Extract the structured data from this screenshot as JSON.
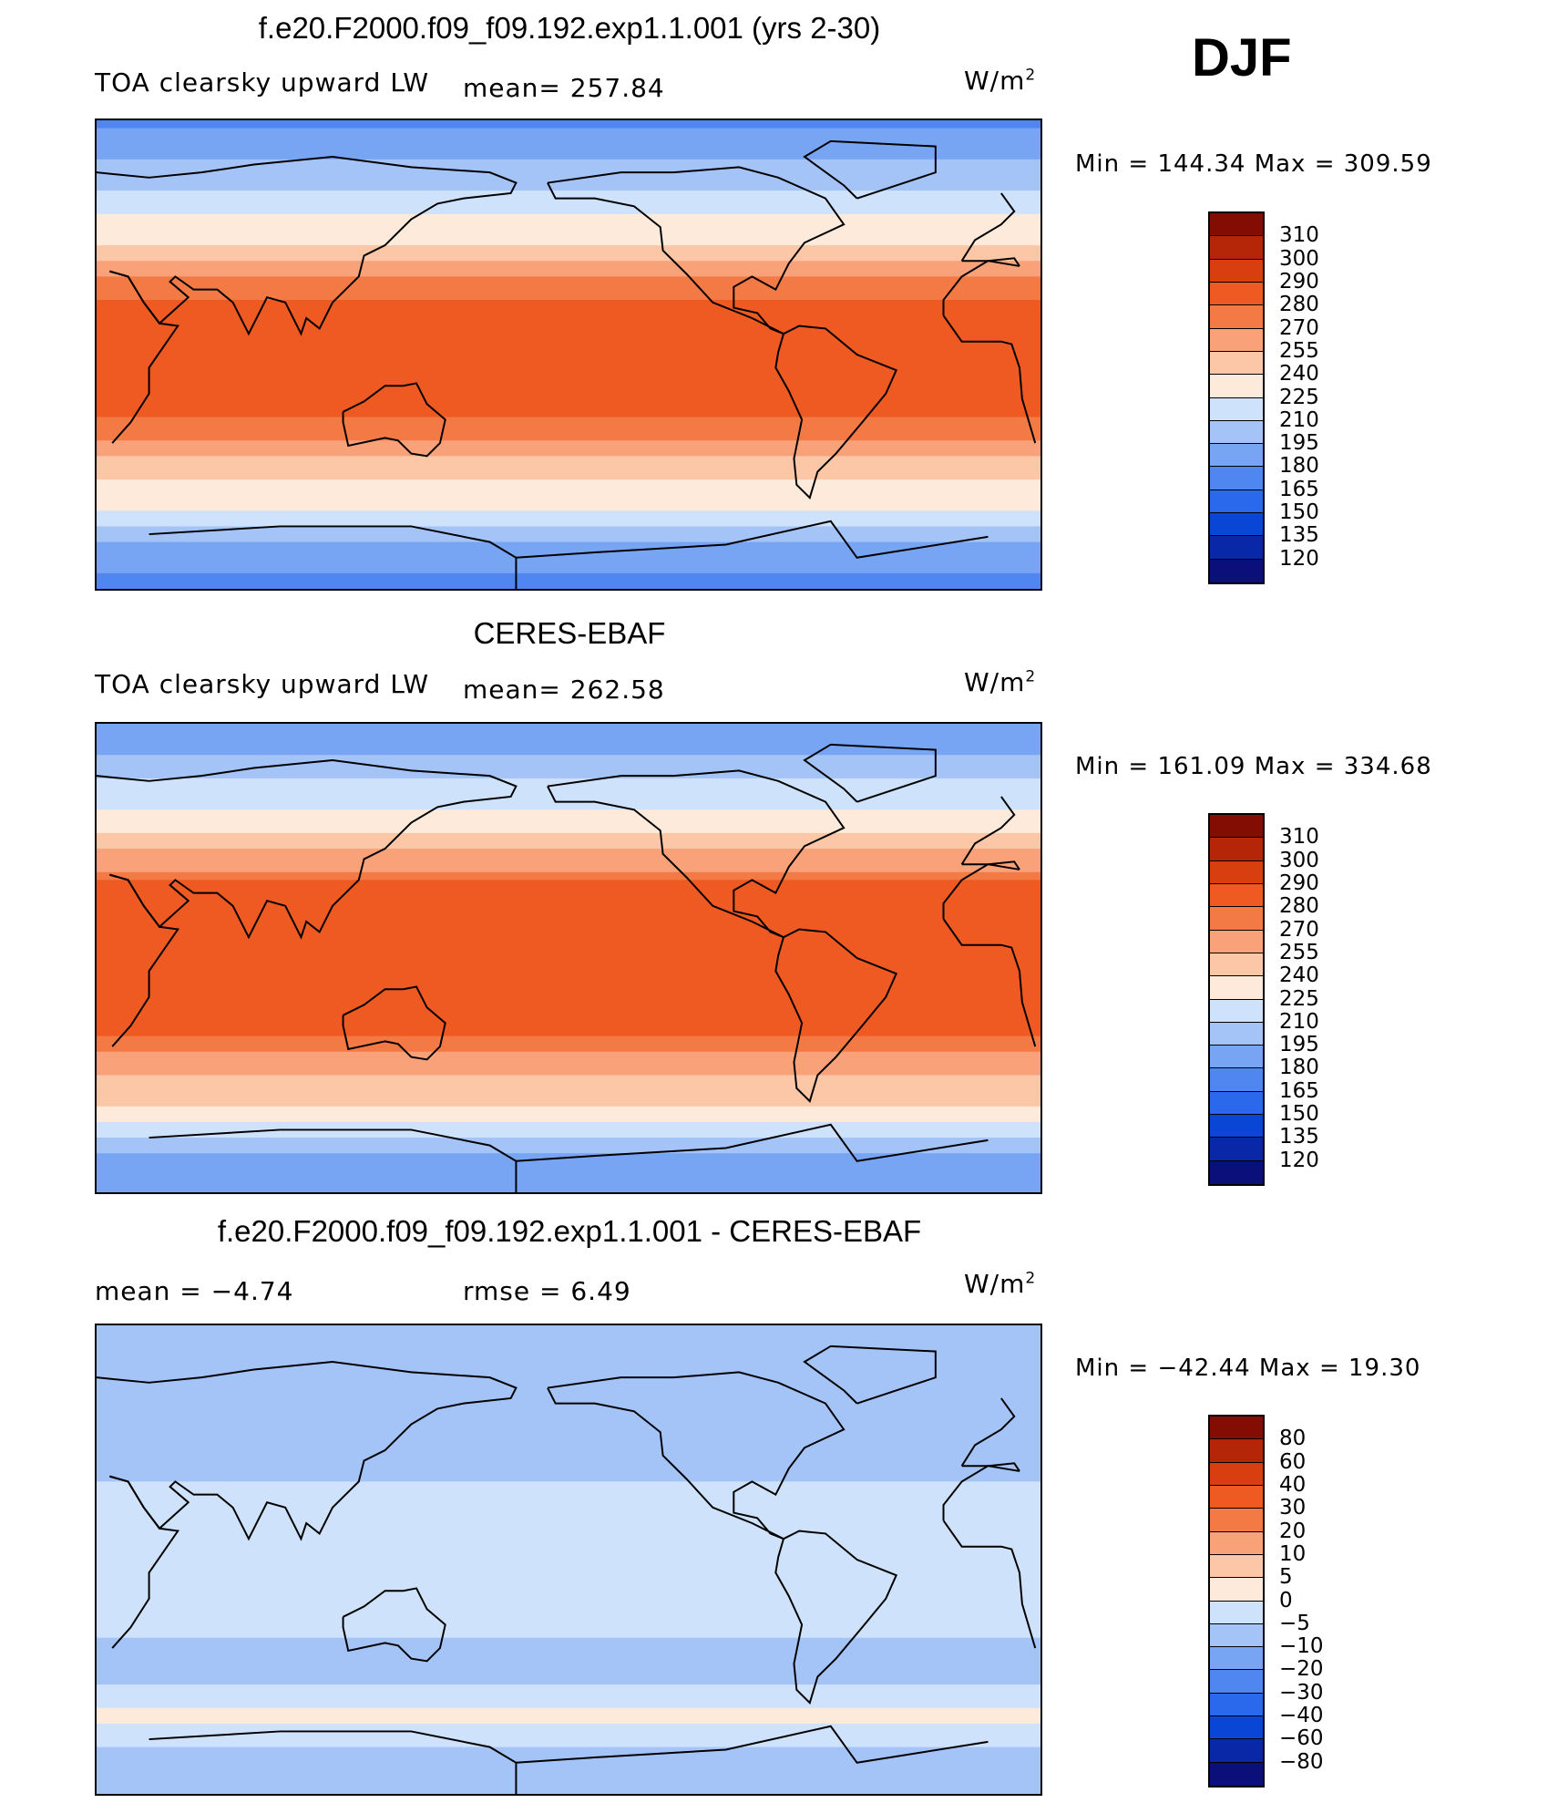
{
  "season": "DJF",
  "colors": {
    "abs_levels": [
      "#0b0f7a",
      "#0828a8",
      "#0a46d6",
      "#2a68ec",
      "#4f86f0",
      "#78a4f4",
      "#a4c4f8",
      "#cfe2fb",
      "#fdeadb",
      "#fbc7a6",
      "#f9a27a",
      "#f47a45",
      "#ee5a22",
      "#d83e10",
      "#b52508",
      "#830c03"
    ],
    "diff_levels": [
      "#0b0f7a",
      "#0828a8",
      "#0a46d6",
      "#2a68ec",
      "#4f86f0",
      "#78a4f4",
      "#a4c4f8",
      "#cfe2fb",
      "#fdeadb",
      "#fbc7a6",
      "#f9a27a",
      "#f47a45",
      "#ee5a22",
      "#d83e10",
      "#b52508",
      "#830c03"
    ],
    "coastline": "#000000"
  },
  "panels": [
    {
      "title": "f.e20.F2000.f09_f09.192.exp1.1.001 (yrs 2-30)",
      "variable": "TOA clearsky upward LW",
      "stat": "mean= 257.84",
      "stat2": "",
      "units_base": "W/m",
      "units_exp": "2",
      "minmax": "Min  =  144.34  Max  =  309.59"
    },
    {
      "title": "CERES-EBAF",
      "variable": "TOA clearsky upward LW",
      "stat": "mean= 262.58",
      "stat2": "",
      "units_base": "W/m",
      "units_exp": "2",
      "minmax": "Min  =  161.09  Max  =  334.68"
    },
    {
      "title": "f.e20.F2000.f09_f09.192.exp1.1.001 - CERES-EBAF",
      "variable": "",
      "stat": "mean  =    −4.74",
      "stat2": "rmse  =     6.49",
      "units_base": "W/m",
      "units_exp": "2",
      "minmax": "Min  =  −42.44  Max  =    19.30"
    }
  ],
  "chart_data": [
    {
      "type": "heatmap",
      "title": "f.e20.F2000.f09_f09.192.exp1.1.001 (yrs 2-30)",
      "subtitle": "TOA clearsky upward LW",
      "units": "W/m2",
      "mean": 257.84,
      "min": 144.34,
      "max": 309.59,
      "levels": [
        310,
        300,
        290,
        280,
        270,
        255,
        240,
        225,
        210,
        195,
        180,
        165,
        150,
        135,
        120
      ],
      "zonal_profile": {
        "lat": [
          90,
          75,
          60,
          45,
          30,
          15,
          0,
          -15,
          -30,
          -45,
          -60,
          -75,
          -90
        ],
        "value": [
          175,
          195,
          215,
          235,
          270,
          285,
          280,
          285,
          275,
          245,
          225,
          190,
          175
        ]
      }
    },
    {
      "type": "heatmap",
      "title": "CERES-EBAF",
      "subtitle": "TOA clearsky upward LW",
      "units": "W/m2",
      "mean": 262.58,
      "min": 161.09,
      "max": 334.68,
      "levels": [
        310,
        300,
        290,
        280,
        270,
        255,
        240,
        225,
        210,
        195,
        180,
        165,
        150,
        135,
        120
      ],
      "zonal_profile": {
        "lat": [
          90,
          75,
          60,
          45,
          30,
          15,
          0,
          -15,
          -30,
          -45,
          -60,
          -75,
          -90
        ],
        "value": [
          180,
          200,
          220,
          245,
          280,
          290,
          285,
          290,
          280,
          255,
          235,
          195,
          180
        ]
      }
    },
    {
      "type": "heatmap",
      "title": "f.e20.F2000.f09_f09.192.exp1.1.001 - CERES-EBAF",
      "units": "W/m2",
      "mean": -4.74,
      "rmse": 6.49,
      "min": -42.44,
      "max": 19.3,
      "levels": [
        80,
        60,
        40,
        30,
        20,
        10,
        5,
        0,
        -5,
        -10,
        -20,
        -30,
        -40,
        -60,
        -80
      ],
      "zonal_profile": {
        "lat": [
          90,
          75,
          60,
          45,
          30,
          15,
          0,
          -15,
          -30,
          -45,
          -60,
          -75,
          -90
        ],
        "value": [
          -8,
          -6,
          -5,
          -6,
          -5,
          -4,
          -5,
          -4,
          -5,
          -6,
          2,
          -6,
          -8
        ]
      }
    }
  ]
}
